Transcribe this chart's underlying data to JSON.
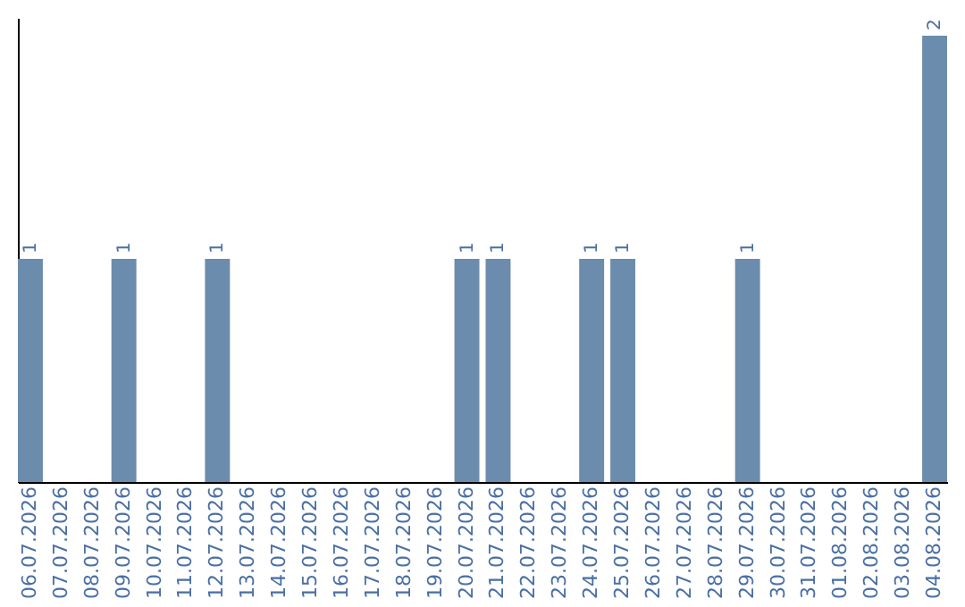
{
  "chart_data": {
    "type": "bar",
    "categories": [
      "06.07.2026",
      "07.07.2026",
      "08.07.2026",
      "09.07.2026",
      "10.07.2026",
      "11.07.2026",
      "12.07.2026",
      "13.07.2026",
      "14.07.2026",
      "15.07.2026",
      "16.07.2026",
      "17.07.2026",
      "18.07.2026",
      "19.07.2026",
      "20.07.2026",
      "21.07.2026",
      "22.07.2026",
      "23.07.2026",
      "24.07.2026",
      "25.07.2026",
      "26.07.2026",
      "27.07.2026",
      "28.07.2026",
      "29.07.2026",
      "30.07.2026",
      "31.07.2026",
      "01.08.2026",
      "02.08.2026",
      "03.08.2026",
      "04.08.2026"
    ],
    "values": [
      1,
      0,
      0,
      1,
      0,
      0,
      1,
      0,
      0,
      0,
      0,
      0,
      0,
      0,
      1,
      1,
      0,
      0,
      1,
      1,
      0,
      0,
      0,
      1,
      0,
      0,
      0,
      0,
      0,
      2
    ],
    "value_labels": [
      "1",
      null,
      null,
      "1",
      null,
      null,
      "1",
      null,
      null,
      null,
      null,
      null,
      null,
      null,
      "1",
      "1",
      null,
      null,
      "1",
      "1",
      null,
      null,
      null,
      "1",
      null,
      null,
      null,
      null,
      null,
      "2"
    ],
    "color": "#6b8cac",
    "grid": false
  }
}
